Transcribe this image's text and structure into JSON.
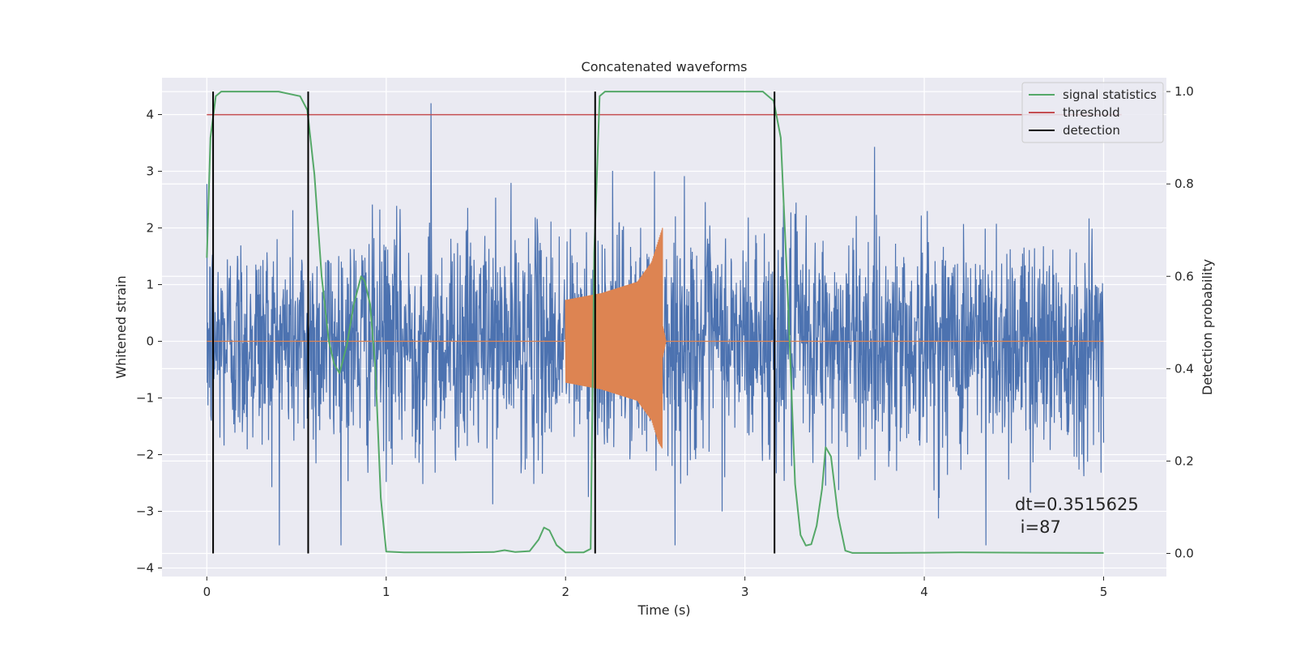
{
  "chart_data": {
    "type": "line",
    "title": "Concatenated waveforms",
    "xlabel": "Time (s)",
    "ylabel": "Whitened strain",
    "y2label": "Detection probability",
    "xlim": [
      -0.25,
      5.35
    ],
    "ylim": [
      -4.15,
      4.65
    ],
    "y2lim": [
      -0.05,
      1.03
    ],
    "xticks": [
      0,
      1,
      2,
      3,
      4,
      5
    ],
    "xtick_labels": [
      "0",
      "1",
      "2",
      "3",
      "4",
      "5"
    ],
    "yticks": [
      -4,
      -3,
      -2,
      -1,
      0,
      1,
      2,
      3,
      4
    ],
    "ytick_labels": [
      "−4",
      "−3",
      "−2",
      "−1",
      "0",
      "1",
      "2",
      "3",
      "4"
    ],
    "y2ticks": [
      0.0,
      0.2,
      0.4,
      0.6,
      0.8,
      1.0
    ],
    "y2tick_labels": [
      "0.0",
      "0.2",
      "0.4",
      "0.6",
      "0.8",
      "1.0"
    ],
    "grid": true,
    "legend_position": "top-right",
    "legend": [
      {
        "label": "signal statistics",
        "color": "#55a868"
      },
      {
        "label": "threshold",
        "color": "#c44e52"
      },
      {
        "label": "detection",
        "color": "#000000"
      }
    ],
    "noise": {
      "color": "#4c72b0",
      "x_range": [
        0,
        5
      ],
      "typical_amplitude": 1.0,
      "max_values": [
        4.2,
        -3.6
      ]
    },
    "injected_signal": {
      "color": "#dd8452",
      "start": 2.0,
      "end": 2.54,
      "envelope_x": [
        2.0,
        2.2,
        2.4,
        2.48,
        2.52,
        2.54
      ],
      "envelope_upper": [
        0.73,
        0.85,
        1.05,
        1.4,
        1.8,
        2.0
      ],
      "envelope_lower": [
        -0.73,
        -0.85,
        -1.05,
        -1.4,
        -1.8,
        -1.9
      ],
      "ringdown_end": 2.56
    },
    "threshold": {
      "y": 0.95,
      "x_range": [
        0,
        5.1
      ]
    },
    "detections": [
      0.035,
      0.565,
      2.165,
      3.165
    ],
    "signal_statistics": {
      "x": [
        0.0,
        0.02,
        0.05,
        0.08,
        0.12,
        0.2,
        0.4,
        0.52,
        0.56,
        0.6,
        0.64,
        0.68,
        0.71,
        0.74,
        0.78,
        0.82,
        0.86,
        0.88,
        0.91,
        0.94,
        0.97,
        1.0,
        1.1,
        1.4,
        1.6,
        1.66,
        1.72,
        1.8,
        1.85,
        1.88,
        1.91,
        1.95,
        2.0,
        2.1,
        2.14,
        2.16,
        2.19,
        2.22,
        2.25,
        2.35,
        2.8,
        3.1,
        3.16,
        3.2,
        3.24,
        3.28,
        3.31,
        3.34,
        3.37,
        3.4,
        3.43,
        3.45,
        3.48,
        3.52,
        3.56,
        3.6,
        3.8,
        4.2,
        5.0
      ],
      "y": [
        0.64,
        0.9,
        0.99,
        1.0,
        1.0,
        1.0,
        1.0,
        0.99,
        0.96,
        0.82,
        0.6,
        0.46,
        0.41,
        0.39,
        0.45,
        0.54,
        0.6,
        0.59,
        0.54,
        0.4,
        0.12,
        0.004,
        0.002,
        0.002,
        0.003,
        0.007,
        0.003,
        0.005,
        0.03,
        0.056,
        0.05,
        0.018,
        0.002,
        0.002,
        0.01,
        0.65,
        0.99,
        1.0,
        1.0,
        1.0,
        1.0,
        1.0,
        0.98,
        0.9,
        0.55,
        0.15,
        0.04,
        0.017,
        0.02,
        0.06,
        0.14,
        0.23,
        0.21,
        0.08,
        0.006,
        0.001,
        0.001,
        0.002,
        0.001
      ]
    },
    "annotation": {
      "line1": "dt=0.3515625",
      "line2": " i=87"
    }
  }
}
